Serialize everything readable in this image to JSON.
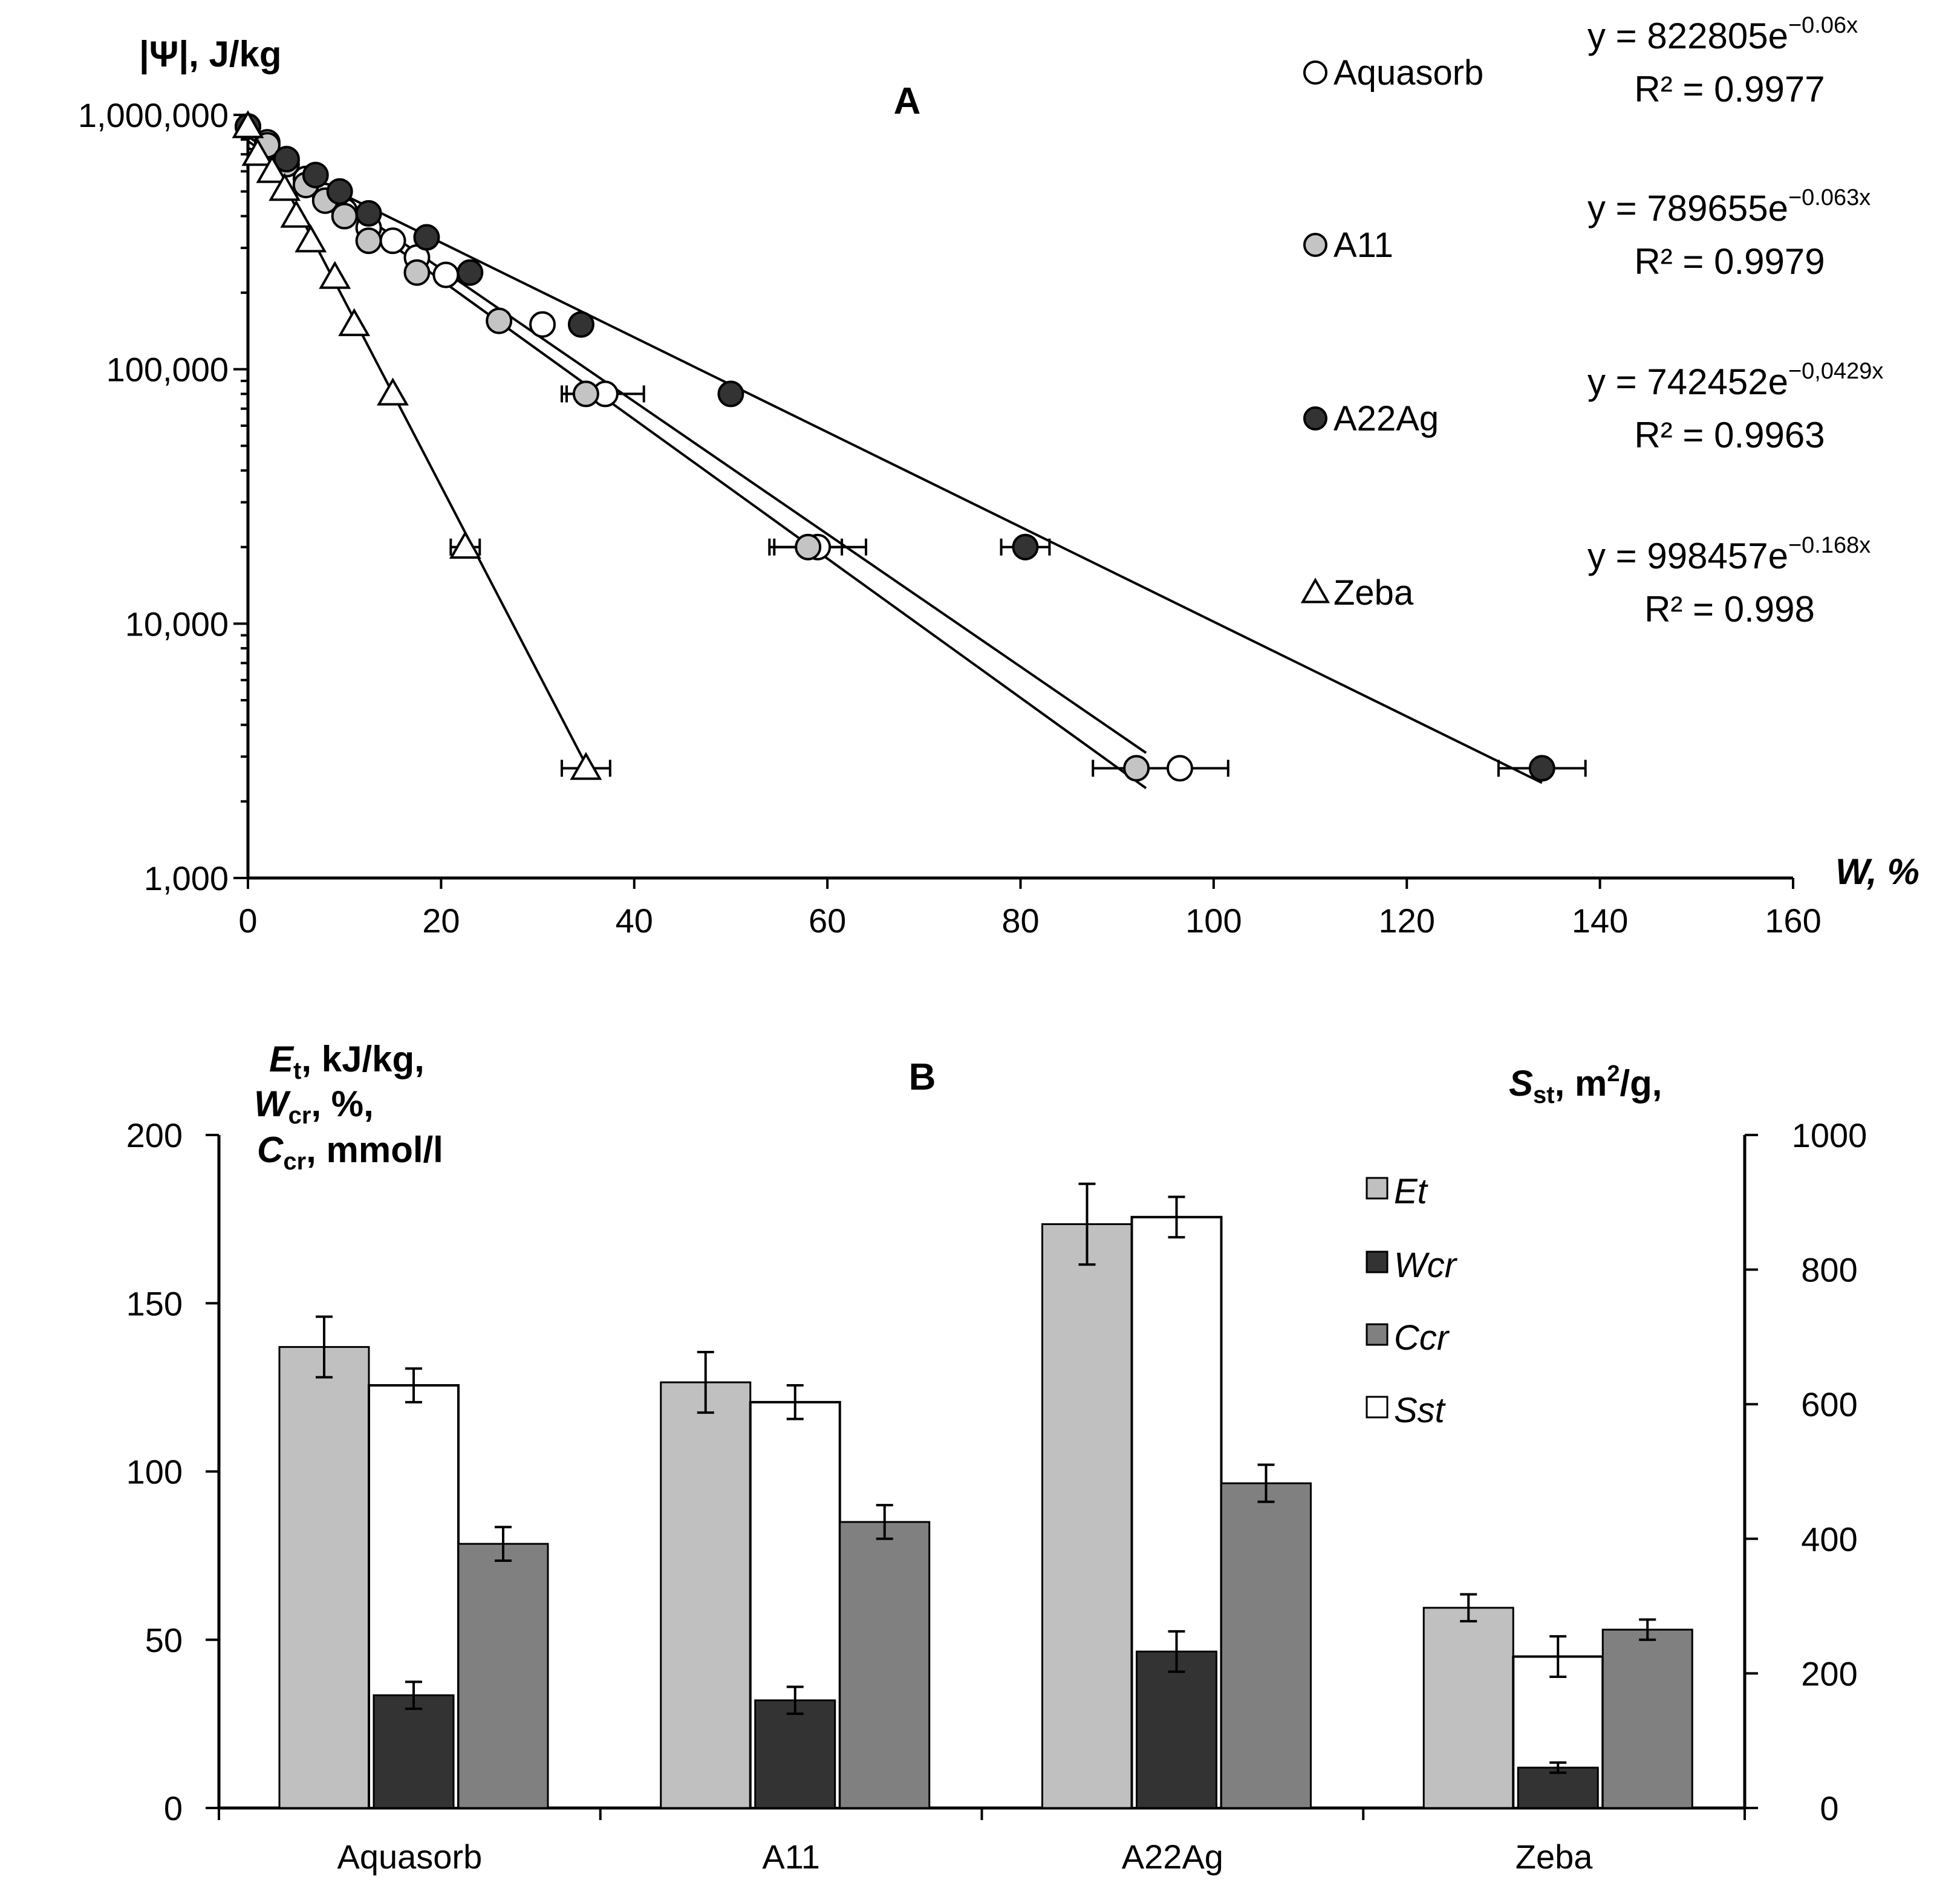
{
  "chart_data": [
    {
      "panel": "A",
      "type": "scatter",
      "title": "A",
      "ylabel": "|Ψ|, J/kg",
      "xlabel": "W, %",
      "yscale": "log",
      "ylim": [
        1000,
        1000000
      ],
      "xlim": [
        0,
        160
      ],
      "xticks": [
        0,
        20,
        40,
        60,
        80,
        100,
        120,
        140,
        160
      ],
      "xtick_labels": [
        "0",
        "20",
        "40",
        "60",
        "80",
        "100",
        "120",
        "140",
        "160"
      ],
      "ytick_labels": [
        "1,000",
        "10,000",
        "100,000",
        "1,000,000"
      ],
      "ytick_values": [
        1000,
        10000,
        100000,
        1000000
      ],
      "series": [
        {
          "name": "Aquasorb",
          "marker": "circle-open",
          "color": "#ffffff",
          "points": [
            [
              0,
              900000
            ],
            [
              2,
              780000
            ],
            [
              4,
              660000
            ],
            [
              6,
              560000
            ],
            [
              8,
              480000
            ],
            [
              10,
              420000
            ],
            [
              12.5,
              360000
            ],
            [
              15,
              320000
            ],
            [
              17.5,
              275000
            ],
            [
              20.5,
              235000
            ],
            [
              30.5,
              150000
            ],
            [
              37,
              80000
            ],
            [
              59,
              20000
            ],
            [
              96.5,
              2700
            ]
          ],
          "xerr": [
            0,
            0,
            0,
            0,
            0,
            0,
            0,
            0,
            0,
            0,
            0,
            4,
            5,
            5
          ],
          "fit": {
            "a": 822805,
            "b": -0.06
          },
          "fit_range": [
            0,
            93
          ],
          "eq_text": "y = 822805e",
          "eq_exp": "−0.06x",
          "r2_text": "R² = 0.9977"
        },
        {
          "name": "A11",
          "marker": "circle-gray",
          "color": "#c4c4c4",
          "points": [
            [
              0,
              900000
            ],
            [
              2,
              760000
            ],
            [
              4,
              640000
            ],
            [
              6,
              530000
            ],
            [
              8,
              460000
            ],
            [
              10,
              400000
            ],
            [
              12.5,
              320000
            ],
            [
              17.5,
              240000
            ],
            [
              26,
              155000
            ],
            [
              35,
              80000
            ],
            [
              58,
              20000
            ],
            [
              92,
              2700
            ]
          ],
          "xerr": [
            0,
            0,
            0,
            0,
            0,
            0,
            0,
            0,
            0,
            2.5,
            3.5,
            4.5
          ],
          "fit": {
            "a": 789655,
            "b": -0.063
          },
          "fit_range": [
            0,
            93
          ],
          "eq_text": "y = 789655e",
          "eq_exp": "−0.063x",
          "r2_text": "R² = 0.9979"
        },
        {
          "name": "A22Ag",
          "marker": "circle-dark",
          "color": "#333333",
          "points": [
            [
              0,
              900000
            ],
            [
              4,
              670000
            ],
            [
              7,
              580000
            ],
            [
              9.5,
              500000
            ],
            [
              12.5,
              410000
            ],
            [
              18.5,
              330000
            ],
            [
              23,
              240000
            ],
            [
              34.5,
              150000
            ],
            [
              50,
              80000
            ],
            [
              80.5,
              20000
            ],
            [
              134,
              2700
            ]
          ],
          "xerr": [
            0,
            0,
            0,
            0,
            0,
            0,
            0,
            0,
            0,
            2.5,
            4.5
          ],
          "fit": {
            "a": 742452,
            "b": -0.0429
          },
          "fit_range": [
            0,
            134
          ],
          "eq_text": "y = 742452e",
          "eq_exp": "−0,0429x",
          "r2_text": "R² = 0.9963"
        },
        {
          "name": "Zeba",
          "marker": "triangle-open",
          "color": "#ffffff",
          "points": [
            [
              0,
              900000
            ],
            [
              1,
              700000
            ],
            [
              2.5,
              600000
            ],
            [
              3.8,
              510000
            ],
            [
              5,
              400000
            ],
            [
              6.5,
              320000
            ],
            [
              9,
              230000
            ],
            [
              11,
              150000
            ],
            [
              15,
              80000
            ],
            [
              22.5,
              20000
            ],
            [
              35,
              2700
            ]
          ],
          "xerr": [
            0,
            0,
            0,
            0,
            0,
            0,
            0,
            0,
            0,
            1.5,
            2.5
          ],
          "fit": {
            "a": 998457,
            "b": -0.168
          },
          "fit_range": [
            0,
            35
          ],
          "eq_text": "y = 998457e",
          "eq_exp": "−0.168x",
          "r2_text": "R² = 0.998"
        }
      ]
    },
    {
      "panel": "B",
      "type": "bar",
      "title": "B",
      "categories": [
        "Aquasorb",
        "A11",
        "A22Ag",
        "Zeba"
      ],
      "ylim": [
        0,
        200
      ],
      "yticks": [
        0,
        50,
        100,
        150,
        200
      ],
      "y2lim": [
        0,
        1000
      ],
      "y2ticks": [
        0,
        200,
        400,
        600,
        800,
        1000
      ],
      "ylabel_lines": [
        {
          "main": "E",
          "sub": "t",
          "rest": ", kJ/kg,"
        },
        {
          "main": "W",
          "sub": "cr",
          "rest": ", %,"
        },
        {
          "main": "C",
          "sub": "cr",
          "rest": ", mmol/l"
        }
      ],
      "y2label": {
        "main": "S",
        "sub": "st",
        "rest1": ", m",
        "sup": "2",
        "rest2": "/g,"
      },
      "series": [
        {
          "name": "Et",
          "axis": "left",
          "color": "#c0c0c0",
          "values": [
            137,
            126.5,
            173.5,
            59.5
          ],
          "errors": [
            9,
            9,
            12,
            4
          ]
        },
        {
          "name": "Sst",
          "axis": "right",
          "color": "#ffffff",
          "values": [
            628,
            603,
            878,
            225
          ],
          "errors": [
            25,
            25,
            30,
            30
          ]
        },
        {
          "name": "Wcr",
          "axis": "left",
          "color": "#333333",
          "values": [
            33.5,
            32,
            46.5,
            12
          ],
          "errors": [
            4,
            4,
            6,
            1.5
          ]
        },
        {
          "name": "Ccr",
          "axis": "left",
          "color": "#808080",
          "values": [
            78.5,
            85,
            96.5,
            53
          ],
          "errors": [
            5,
            5,
            5.5,
            3
          ]
        }
      ],
      "legend": [
        "Et",
        "Wcr",
        "Ccr",
        "Sst"
      ]
    }
  ]
}
